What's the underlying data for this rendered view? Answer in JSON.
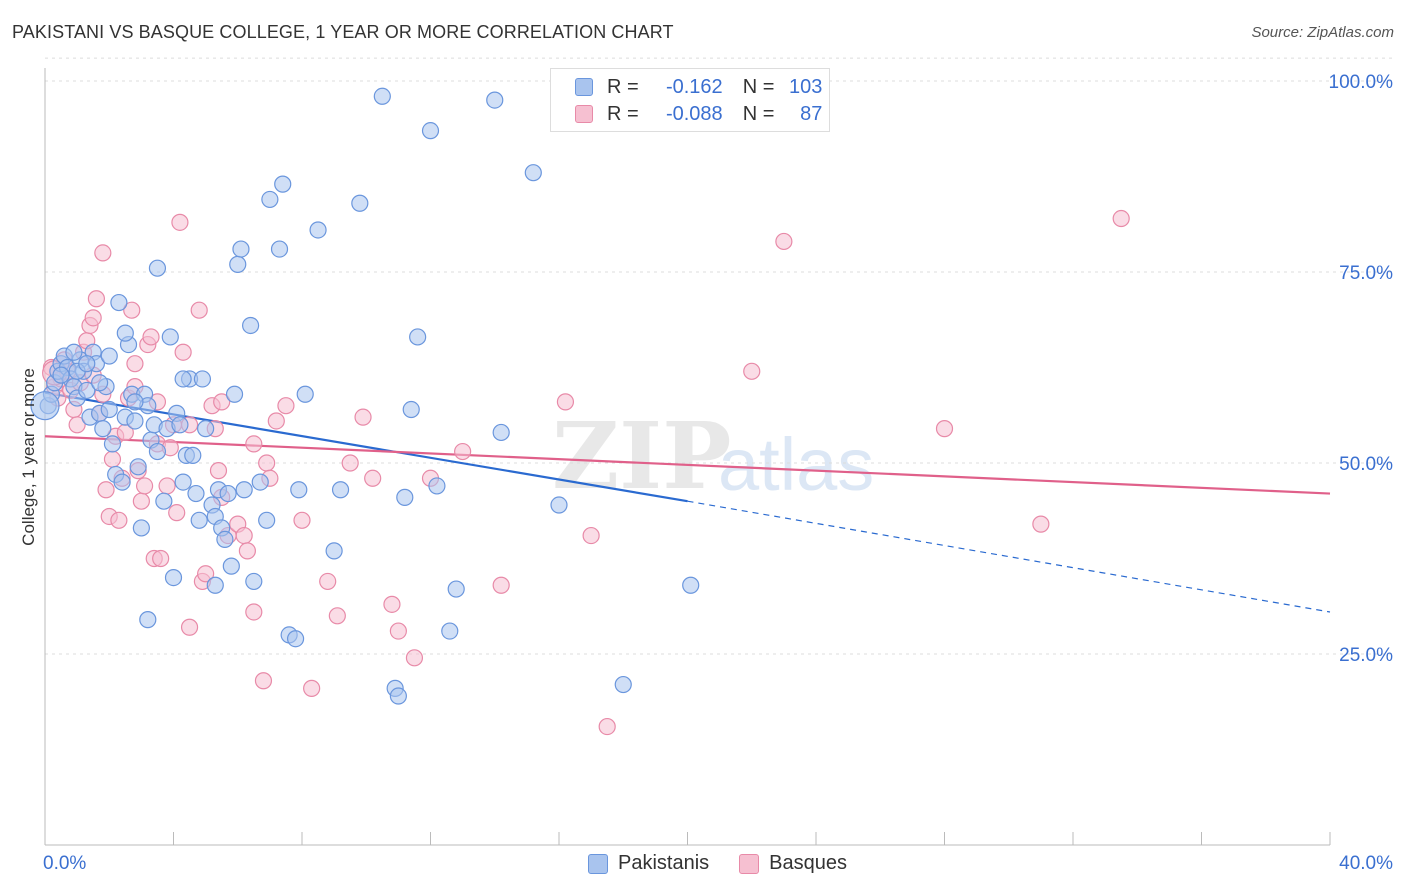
{
  "title": "PAKISTANI VS BASQUE COLLEGE, 1 YEAR OR MORE CORRELATION CHART",
  "source": "Source: ZipAtlas.com",
  "watermark": {
    "zip": "ZIP",
    "atlas": "atlas"
  },
  "legend": {
    "r_label": "R =",
    "n_label": "N =",
    "rows": [
      {
        "r": "-0.162",
        "n": "103"
      },
      {
        "r": "-0.088",
        "n": "87"
      }
    ]
  },
  "colors": {
    "pakistani_fill": "#a9c4ee",
    "pakistani_stroke": "#6a96dd",
    "pakistani_line": "#2a6ad0",
    "basque_fill": "#f6c0d1",
    "basque_stroke": "#e88aa8",
    "basque_line": "#e0608a",
    "axis_label": "#3a6fd0",
    "grid": "#dcdcdc"
  },
  "chart_data": {
    "type": "scatter",
    "title": "PAKISTANI VS BASQUE COLLEGE, 1 YEAR OR MORE CORRELATION CHART",
    "xlabel": "",
    "ylabel": "College, 1 year or more",
    "xlim": [
      0,
      40
    ],
    "ylim": [
      0,
      103
    ],
    "x_tick_labels": [
      "0.0%",
      "40.0%"
    ],
    "y_ticks": [
      25,
      50,
      75,
      100
    ],
    "y_tick_labels": [
      "25.0%",
      "50.0%",
      "75.0%",
      "100.0%"
    ],
    "series": [
      {
        "name": "Pakistanis",
        "r": -0.162,
        "n": 103,
        "trend": {
          "x0": 0,
          "y0": 59.2,
          "x1": 20,
          "y1": 45.0,
          "dashed_to_x": 40,
          "dashed_to_y": 30.5
        },
        "points": [
          [
            0.1,
            57.5
          ],
          [
            0.2,
            59.0
          ],
          [
            0.3,
            60.5
          ],
          [
            0.4,
            62.0
          ],
          [
            0.5,
            63.0
          ],
          [
            0.6,
            64.0
          ],
          [
            0.7,
            62.5
          ],
          [
            0.8,
            61.0
          ],
          [
            0.9,
            60.0
          ],
          [
            1.0,
            58.5
          ],
          [
            1.1,
            63.5
          ],
          [
            1.2,
            62.0
          ],
          [
            1.3,
            59.5
          ],
          [
            1.4,
            56.0
          ],
          [
            1.5,
            64.5
          ],
          [
            1.6,
            63.0
          ],
          [
            1.7,
            56.5
          ],
          [
            1.8,
            54.5
          ],
          [
            1.9,
            60.0
          ],
          [
            2.0,
            57.0
          ],
          [
            2.1,
            52.5
          ],
          [
            2.2,
            48.5
          ],
          [
            2.3,
            71.0
          ],
          [
            2.4,
            47.5
          ],
          [
            2.5,
            56.0
          ],
          [
            2.6,
            65.5
          ],
          [
            2.7,
            59.0
          ],
          [
            2.8,
            55.5
          ],
          [
            2.5,
            67.0
          ],
          [
            2.9,
            49.5
          ],
          [
            3.0,
            41.5
          ],
          [
            3.1,
            59.0
          ],
          [
            3.2,
            57.5
          ],
          [
            3.3,
            53.0
          ],
          [
            3.4,
            55.0
          ],
          [
            3.5,
            51.5
          ],
          [
            3.7,
            45.0
          ],
          [
            3.8,
            54.5
          ],
          [
            3.9,
            66.5
          ],
          [
            4.0,
            35.0
          ],
          [
            4.1,
            56.5
          ],
          [
            4.2,
            55.0
          ],
          [
            4.3,
            47.5
          ],
          [
            4.4,
            51.0
          ],
          [
            4.5,
            61.0
          ],
          [
            4.6,
            51.0
          ],
          [
            4.7,
            46.0
          ],
          [
            4.8,
            42.5
          ],
          [
            4.9,
            61.0
          ],
          [
            5.0,
            54.5
          ],
          [
            5.2,
            44.5
          ],
          [
            5.3,
            43.0
          ],
          [
            5.4,
            46.5
          ],
          [
            5.5,
            41.5
          ],
          [
            5.6,
            40.0
          ],
          [
            5.7,
            46.0
          ],
          [
            5.8,
            36.5
          ],
          [
            5.9,
            59.0
          ],
          [
            6.0,
            76.0
          ],
          [
            6.1,
            78.0
          ],
          [
            6.2,
            46.5
          ],
          [
            6.4,
            68.0
          ],
          [
            6.5,
            34.5
          ],
          [
            5.3,
            34.0
          ],
          [
            6.7,
            47.5
          ],
          [
            6.9,
            42.5
          ],
          [
            7.0,
            84.5
          ],
          [
            7.3,
            78.0
          ],
          [
            7.4,
            86.5
          ],
          [
            7.6,
            27.5
          ],
          [
            7.8,
            27.0
          ],
          [
            7.9,
            46.5
          ],
          [
            8.1,
            59.0
          ],
          [
            8.5,
            80.5
          ],
          [
            9.0,
            38.5
          ],
          [
            9.2,
            46.5
          ],
          [
            9.8,
            84.0
          ],
          [
            10.5,
            98.0
          ],
          [
            10.9,
            20.5
          ],
          [
            11.0,
            19.5
          ],
          [
            11.2,
            45.5
          ],
          [
            11.4,
            57.0
          ],
          [
            11.6,
            66.5
          ],
          [
            12.0,
            93.5
          ],
          [
            12.2,
            47.0
          ],
          [
            12.6,
            28.0
          ],
          [
            12.8,
            33.5
          ],
          [
            14.0,
            97.5
          ],
          [
            14.2,
            54.0
          ],
          [
            15.2,
            88.0
          ],
          [
            16.0,
            44.5
          ],
          [
            18.0,
            21.0
          ],
          [
            20.1,
            34.0
          ],
          [
            3.2,
            29.5
          ],
          [
            3.5,
            75.5
          ],
          [
            1.0,
            62.0
          ],
          [
            2.0,
            64.0
          ],
          [
            0.5,
            61.5
          ],
          [
            1.7,
            60.5
          ],
          [
            2.8,
            58.0
          ],
          [
            1.3,
            63.0
          ],
          [
            0.9,
            64.5
          ],
          [
            4.3,
            61.0
          ]
        ]
      },
      {
        "name": "Basques",
        "r": -0.088,
        "n": 87,
        "trend": {
          "x0": 0,
          "y0": 53.5,
          "x1": 40,
          "y1": 46.0
        },
        "points": [
          [
            0.2,
            62.5
          ],
          [
            0.3,
            60.0
          ],
          [
            0.4,
            58.5
          ],
          [
            0.5,
            61.0
          ],
          [
            0.6,
            63.5
          ],
          [
            0.7,
            62.0
          ],
          [
            0.8,
            59.5
          ],
          [
            0.9,
            57.0
          ],
          [
            1.0,
            55.0
          ],
          [
            1.1,
            60.5
          ],
          [
            1.2,
            64.5
          ],
          [
            1.3,
            66.0
          ],
          [
            1.4,
            68.0
          ],
          [
            1.5,
            69.0
          ],
          [
            1.6,
            71.5
          ],
          [
            1.7,
            56.5
          ],
          [
            1.8,
            59.0
          ],
          [
            1.9,
            46.5
          ],
          [
            2.0,
            43.0
          ],
          [
            2.1,
            50.5
          ],
          [
            2.2,
            53.5
          ],
          [
            2.3,
            42.5
          ],
          [
            2.4,
            48.0
          ],
          [
            2.5,
            54.0
          ],
          [
            2.6,
            58.5
          ],
          [
            2.7,
            70.0
          ],
          [
            2.8,
            63.0
          ],
          [
            2.9,
            49.0
          ],
          [
            3.0,
            45.0
          ],
          [
            3.1,
            47.0
          ],
          [
            3.2,
            65.5
          ],
          [
            3.3,
            66.5
          ],
          [
            3.4,
            37.5
          ],
          [
            3.5,
            52.5
          ],
          [
            3.6,
            37.5
          ],
          [
            3.8,
            47.0
          ],
          [
            3.9,
            52.0
          ],
          [
            4.0,
            55.0
          ],
          [
            4.1,
            43.5
          ],
          [
            4.2,
            81.5
          ],
          [
            4.3,
            64.5
          ],
          [
            4.5,
            28.5
          ],
          [
            4.8,
            70.0
          ],
          [
            4.9,
            34.5
          ],
          [
            5.0,
            35.5
          ],
          [
            5.2,
            57.5
          ],
          [
            5.3,
            54.5
          ],
          [
            5.4,
            49.0
          ],
          [
            5.5,
            45.5
          ],
          [
            5.7,
            40.5
          ],
          [
            6.0,
            42.0
          ],
          [
            6.2,
            40.5
          ],
          [
            6.3,
            38.5
          ],
          [
            6.5,
            30.5
          ],
          [
            6.8,
            21.5
          ],
          [
            6.9,
            50.0
          ],
          [
            7.0,
            48.0
          ],
          [
            7.2,
            55.5
          ],
          [
            7.5,
            57.5
          ],
          [
            8.0,
            42.5
          ],
          [
            8.3,
            20.5
          ],
          [
            8.8,
            34.5
          ],
          [
            9.1,
            30.0
          ],
          [
            9.5,
            50.0
          ],
          [
            9.9,
            56.0
          ],
          [
            10.2,
            48.0
          ],
          [
            10.8,
            31.5
          ],
          [
            11.0,
            28.0
          ],
          [
            11.5,
            24.5
          ],
          [
            12.0,
            48.0
          ],
          [
            13.0,
            51.5
          ],
          [
            14.2,
            34.0
          ],
          [
            16.2,
            58.0
          ],
          [
            17.0,
            40.5
          ],
          [
            17.5,
            15.5
          ],
          [
            22.0,
            62.0
          ],
          [
            23.0,
            79.0
          ],
          [
            28.0,
            54.5
          ],
          [
            31.0,
            42.0
          ],
          [
            33.5,
            82.0
          ],
          [
            1.8,
            77.5
          ],
          [
            6.5,
            52.5
          ],
          [
            5.5,
            58.0
          ],
          [
            4.5,
            55.0
          ],
          [
            3.5,
            58.0
          ],
          [
            2.8,
            60.0
          ],
          [
            1.5,
            61.5
          ]
        ]
      }
    ]
  }
}
